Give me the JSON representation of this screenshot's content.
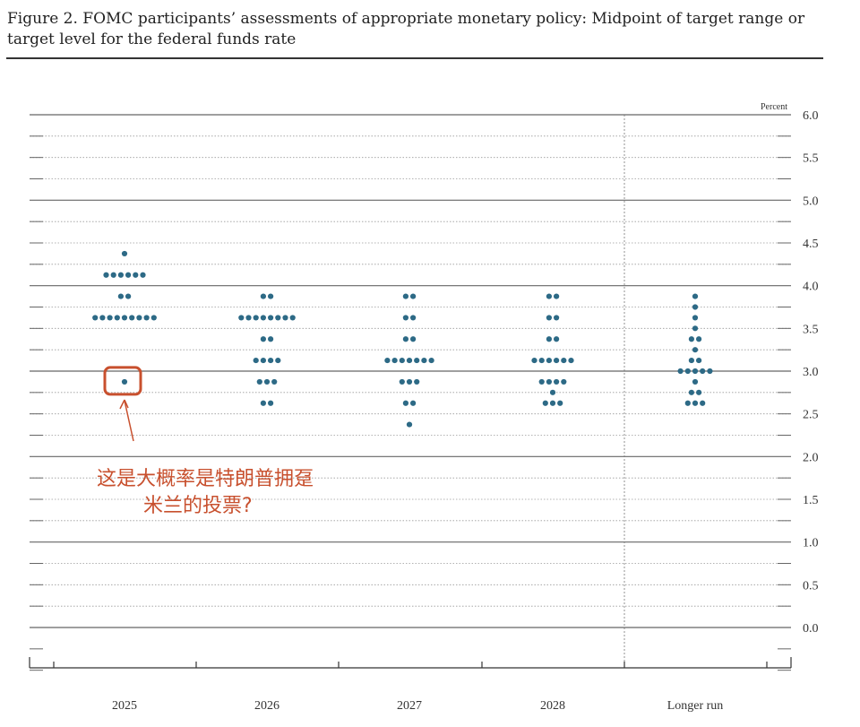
{
  "figure": {
    "title": "Figure 2. FOMC participants’ assessments of appropriate monetary policy: Midpoint of target range or target level for the federal funds rate"
  },
  "annotation": {
    "line1": "这是大概率是特朗普拥趸",
    "line2": "米兰的投票?",
    "highlight_color": "#c8502e"
  },
  "chart_data": {
    "type": "scatter",
    "title": "Figure 2. FOMC participants’ assessments of appropriate monetary policy: Midpoint of target range or target level for the federal funds rate",
    "y_unit_label": "Percent",
    "ylim": [
      0.0,
      6.0
    ],
    "y_ticks": [
      "6.0",
      "5.5",
      "5.0",
      "4.5",
      "4.0",
      "3.5",
      "3.0",
      "2.5",
      "2.0",
      "1.5",
      "1.0",
      "0.5",
      "0.0"
    ],
    "categories": [
      "2025",
      "2026",
      "2027",
      "2028",
      "Longer run"
    ],
    "dot_color": "#2d6a86",
    "series": [
      {
        "category": "2025",
        "dots": [
          {
            "y": 4.375,
            "count": 1
          },
          {
            "y": 4.125,
            "count": 6
          },
          {
            "y": 3.875,
            "count": 2
          },
          {
            "y": 3.625,
            "count": 9
          },
          {
            "y": 2.875,
            "count": 1
          }
        ]
      },
      {
        "category": "2026",
        "dots": [
          {
            "y": 3.875,
            "count": 2
          },
          {
            "y": 3.625,
            "count": 8
          },
          {
            "y": 3.375,
            "count": 2
          },
          {
            "y": 3.125,
            "count": 4
          },
          {
            "y": 2.875,
            "count": 3
          },
          {
            "y": 2.625,
            "count": 2
          }
        ]
      },
      {
        "category": "2027",
        "dots": [
          {
            "y": 3.875,
            "count": 2
          },
          {
            "y": 3.625,
            "count": 2
          },
          {
            "y": 3.375,
            "count": 2
          },
          {
            "y": 3.125,
            "count": 7
          },
          {
            "y": 2.875,
            "count": 3
          },
          {
            "y": 2.625,
            "count": 2
          },
          {
            "y": 2.375,
            "count": 1
          }
        ]
      },
      {
        "category": "2028",
        "dots": [
          {
            "y": 3.875,
            "count": 2
          },
          {
            "y": 3.625,
            "count": 2
          },
          {
            "y": 3.375,
            "count": 2
          },
          {
            "y": 3.125,
            "count": 6
          },
          {
            "y": 2.875,
            "count": 4
          },
          {
            "y": 2.75,
            "count": 1
          },
          {
            "y": 2.625,
            "count": 3
          }
        ]
      },
      {
        "category": "Longer run",
        "dots": [
          {
            "y": 3.875,
            "count": 1
          },
          {
            "y": 3.75,
            "count": 1
          },
          {
            "y": 3.625,
            "count": 1
          },
          {
            "y": 3.5,
            "count": 1
          },
          {
            "y": 3.375,
            "count": 2
          },
          {
            "y": 3.25,
            "count": 1
          },
          {
            "y": 3.125,
            "count": 2
          },
          {
            "y": 3.0,
            "count": 5
          },
          {
            "y": 2.875,
            "count": 1
          },
          {
            "y": 2.75,
            "count": 2
          },
          {
            "y": 2.625,
            "count": 3
          }
        ]
      }
    ]
  }
}
